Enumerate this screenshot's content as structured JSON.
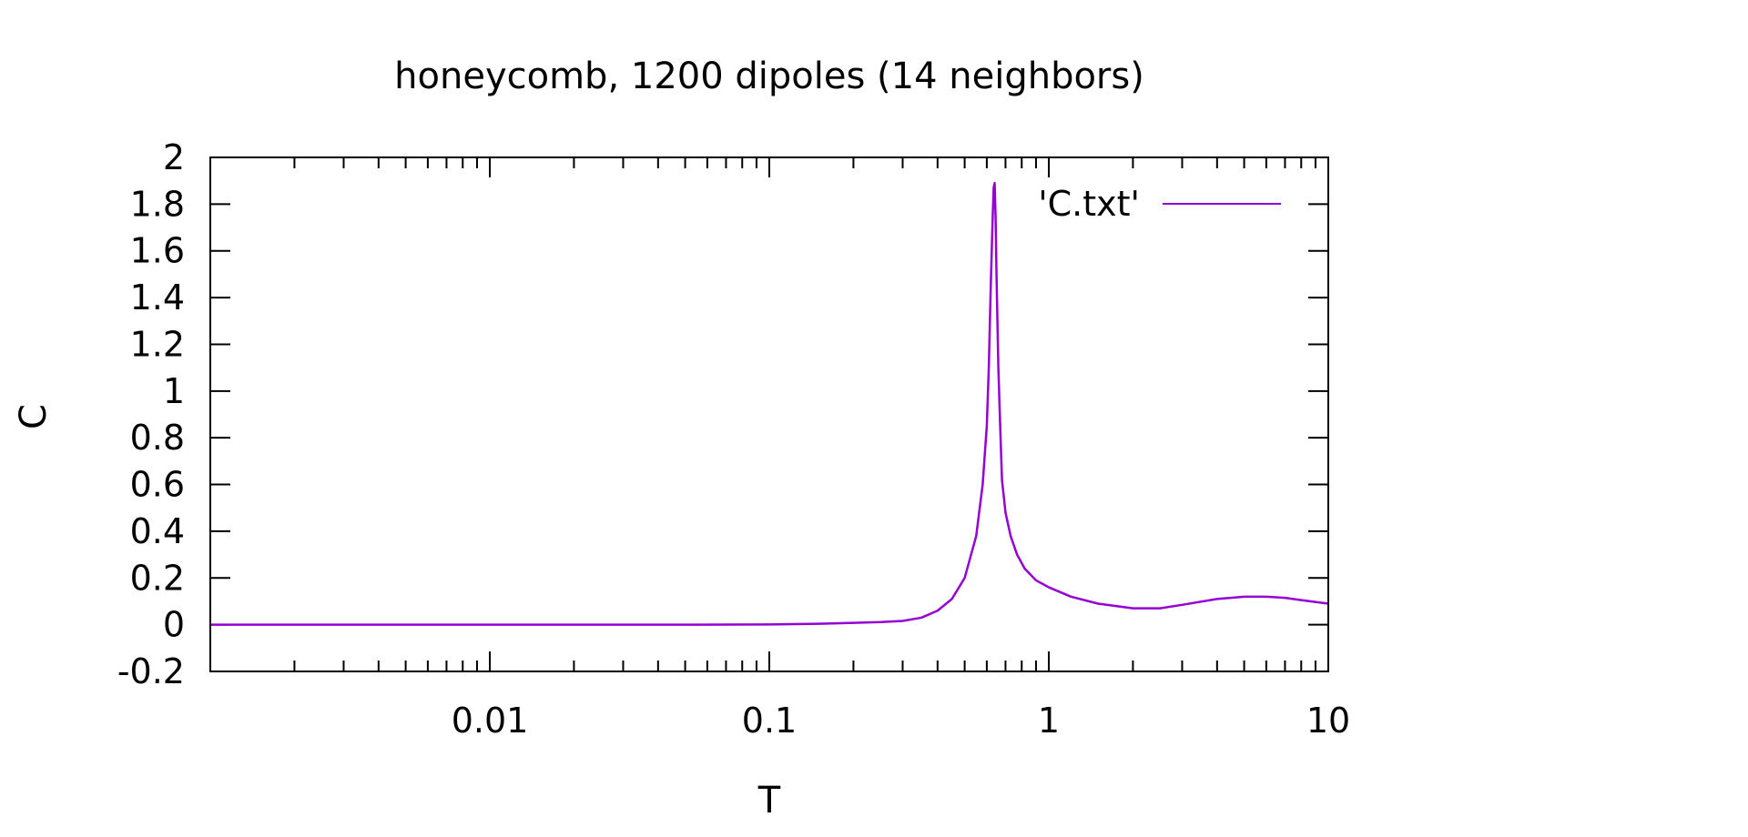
{
  "chart_data": {
    "type": "line",
    "title": "honeycomb, 1200 dipoles (14 neighbors)",
    "xlabel": "T",
    "ylabel": "C",
    "x_scale": "log",
    "xlim": [
      0.001,
      10
    ],
    "ylim": [
      -0.2,
      2
    ],
    "x_ticks": [
      0.01,
      0.1,
      1,
      10
    ],
    "x_tick_labels": [
      "0.01",
      "0.1",
      "1",
      "10"
    ],
    "y_ticks": [
      -0.2,
      0,
      0.2,
      0.4,
      0.6,
      0.8,
      1,
      1.2,
      1.4,
      1.6,
      1.8,
      2
    ],
    "y_tick_labels": [
      "-0.2",
      "0",
      "0.2",
      "0.4",
      "0.6",
      "0.8",
      "1",
      "1.2",
      "1.4",
      "1.6",
      "1.8",
      "2"
    ],
    "grid": false,
    "legend_position": "top-right",
    "series": [
      {
        "name": "'C.txt'",
        "color": "#9400d3",
        "points": [
          [
            0.001,
            0.0
          ],
          [
            0.01,
            0.0
          ],
          [
            0.05,
            0.0
          ],
          [
            0.1,
            0.001
          ],
          [
            0.15,
            0.004
          ],
          [
            0.2,
            0.008
          ],
          [
            0.25,
            0.011
          ],
          [
            0.3,
            0.016
          ],
          [
            0.35,
            0.03
          ],
          [
            0.4,
            0.06
          ],
          [
            0.45,
            0.11
          ],
          [
            0.5,
            0.2
          ],
          [
            0.55,
            0.38
          ],
          [
            0.58,
            0.6
          ],
          [
            0.6,
            0.85
          ],
          [
            0.61,
            1.1
          ],
          [
            0.62,
            1.45
          ],
          [
            0.63,
            1.75
          ],
          [
            0.635,
            1.87
          ],
          [
            0.64,
            1.89
          ],
          [
            0.645,
            1.75
          ],
          [
            0.65,
            1.5
          ],
          [
            0.66,
            1.1
          ],
          [
            0.67,
            0.85
          ],
          [
            0.68,
            0.62
          ],
          [
            0.7,
            0.48
          ],
          [
            0.73,
            0.38
          ],
          [
            0.77,
            0.3
          ],
          [
            0.82,
            0.24
          ],
          [
            0.9,
            0.19
          ],
          [
            1.0,
            0.16
          ],
          [
            1.2,
            0.12
          ],
          [
            1.5,
            0.09
          ],
          [
            2.0,
            0.07
          ],
          [
            2.5,
            0.07
          ],
          [
            3.0,
            0.085
          ],
          [
            4.0,
            0.11
          ],
          [
            5.0,
            0.12
          ],
          [
            6.0,
            0.12
          ],
          [
            7.0,
            0.115
          ],
          [
            8.0,
            0.105
          ],
          [
            10.0,
            0.09
          ]
        ]
      }
    ]
  }
}
